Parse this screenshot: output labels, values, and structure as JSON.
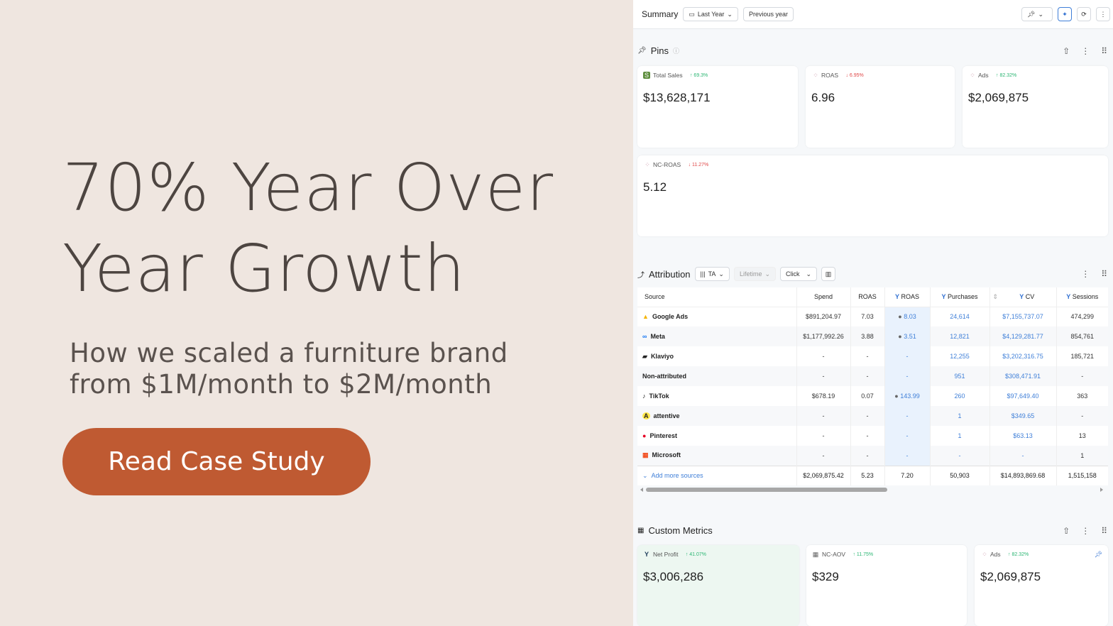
{
  "promo": {
    "headline_line1": "70% Year Over",
    "headline_line2": "Year Growth",
    "subhead_line1": "How we scaled a furniture brand",
    "subhead_line2": "from $1M/month to $2M/month",
    "cta": "Read Case Study"
  },
  "colors": {
    "accent": "#bf5a32",
    "background": "#efe6e0",
    "up": "#2bb673",
    "down": "#e04848",
    "link": "#3f7fd8"
  },
  "toolbar": {
    "title": "Summary",
    "date_range": "Last Year",
    "compare": "Previous year"
  },
  "pins": {
    "title": "Pins",
    "cards": [
      {
        "label": "Total Sales",
        "change": "69.3%",
        "dir": "up",
        "value": "$13,628,171",
        "icon": "shopify-icon"
      },
      {
        "label": "ROAS",
        "change": "6.95%",
        "dir": "down",
        "value": "6.96",
        "icon": "dots-icon"
      },
      {
        "label": "Ads",
        "change": "82.32%",
        "dir": "up",
        "value": "$2,069,875",
        "icon": "dots-icon"
      },
      {
        "label": "NC-ROAS",
        "change": "11.27%",
        "dir": "down",
        "value": "5.12",
        "icon": "dots-icon"
      }
    ]
  },
  "attribution": {
    "title": "Attribution",
    "model": "TA",
    "window": "Lifetime",
    "type": "Click",
    "columns": [
      "Source",
      "Spend",
      "ROAS",
      "ROAS",
      "Purchases",
      "CV",
      "Sessions"
    ],
    "rows": [
      [
        "Google Ads",
        "$891,204.97",
        "7.03",
        "8.03",
        "24,614",
        "$7,155,737.07",
        "474,299"
      ],
      [
        "Meta",
        "$1,177,992.26",
        "3.88",
        "3.51",
        "12,821",
        "$4,129,281.77",
        "854,761"
      ],
      [
        "Klaviyo",
        "-",
        "-",
        "-",
        "12,255",
        "$3,202,316.75",
        "185,721"
      ],
      [
        "Non-attributed",
        "-",
        "-",
        "-",
        "951",
        "$308,471.91",
        "-"
      ],
      [
        "TikTok",
        "$678.19",
        "0.07",
        "143.99",
        "260",
        "$97,649.40",
        "363"
      ],
      [
        "attentive",
        "-",
        "-",
        "-",
        "1",
        "$349.65",
        "-"
      ],
      [
        "Pinterest",
        "-",
        "-",
        "-",
        "1",
        "$63.13",
        "13"
      ],
      [
        "Microsoft",
        "-",
        "-",
        "-",
        "-",
        "-",
        "1"
      ]
    ],
    "footer": {
      "add": "Add more sources",
      "spend": "$2,069,875.42",
      "roas": "5.23",
      "ta_roas": "7.20",
      "purchases": "50,903",
      "cv": "$14,893,869.68",
      "sessions": "1,515,158"
    }
  },
  "custom": {
    "title": "Custom Metrics",
    "cards": [
      {
        "label": "Net Profit",
        "change": "41.07%",
        "dir": "up",
        "value": "$3,006,286"
      },
      {
        "label": "NC-AOV",
        "change": "11.75%",
        "dir": "up",
        "value": "$329"
      },
      {
        "label": "Ads",
        "change": "82.32%",
        "dir": "up",
        "value": "$2,069,875"
      }
    ]
  }
}
